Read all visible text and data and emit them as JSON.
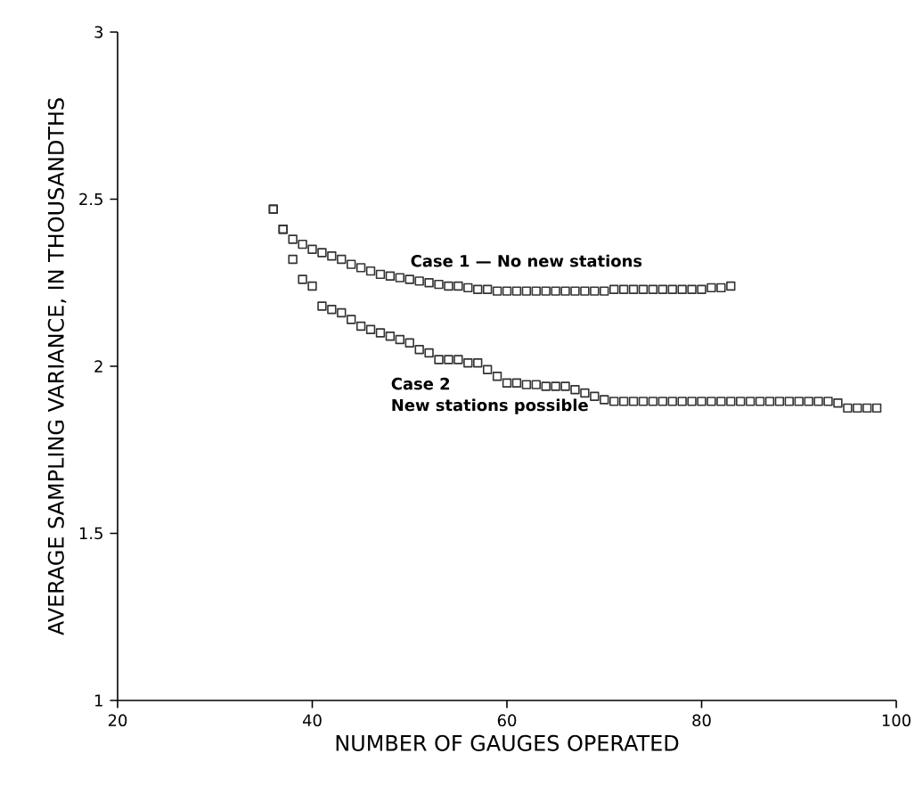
{
  "chart_data": {
    "type": "scatter",
    "xlabel": "NUMBER OF GAUGES OPERATED",
    "ylabel": "AVERAGE SAMPLING VARIANCE, IN THOUSANDTHS",
    "xlim": [
      20,
      100
    ],
    "xticks": [
      20,
      40,
      60,
      80,
      100
    ],
    "ylim": [
      1,
      3
    ],
    "yticks": [
      1,
      1.5,
      2,
      2.5,
      3
    ],
    "marker": "square",
    "grid": false,
    "legend": false,
    "series": [
      {
        "name": "Case 1 — No new stations",
        "color": "#333333",
        "x": [
          36,
          37,
          38,
          39,
          40,
          41,
          42,
          43,
          44,
          45,
          46,
          47,
          48,
          49,
          50,
          51,
          52,
          53,
          54,
          55,
          56,
          57,
          58,
          59,
          60,
          61,
          62,
          63,
          64,
          65,
          66,
          67,
          68,
          69,
          70,
          71,
          72,
          73,
          74,
          75,
          76,
          77,
          78,
          79,
          80,
          81,
          82,
          83
        ],
        "values": [
          2.47,
          2.41,
          2.38,
          2.365,
          2.35,
          2.34,
          2.33,
          2.32,
          2.305,
          2.295,
          2.285,
          2.275,
          2.27,
          2.265,
          2.26,
          2.255,
          2.25,
          2.245,
          2.24,
          2.24,
          2.235,
          2.23,
          2.23,
          2.225,
          2.225,
          2.225,
          2.225,
          2.225,
          2.225,
          2.225,
          2.225,
          2.225,
          2.225,
          2.225,
          2.225,
          2.23,
          2.23,
          2.23,
          2.23,
          2.23,
          2.23,
          2.23,
          2.23,
          2.23,
          2.23,
          2.235,
          2.235,
          2.24
        ]
      },
      {
        "name": "Case 2",
        "color": "#333333",
        "x": [
          36,
          37,
          38,
          39,
          40,
          41,
          42,
          43,
          44,
          45,
          46,
          47,
          48,
          49,
          50,
          51,
          52,
          53,
          54,
          55,
          56,
          57,
          58,
          59,
          60,
          61,
          62,
          63,
          64,
          65,
          66,
          67,
          68,
          69,
          70,
          71,
          72,
          73,
          74,
          75,
          76,
          77,
          78,
          79,
          80,
          81,
          82,
          83,
          84,
          85,
          86,
          87,
          88,
          89,
          90,
          91,
          92,
          93,
          94,
          95,
          96,
          97,
          98
        ],
        "values": [
          2.47,
          2.41,
          2.32,
          2.26,
          2.24,
          2.18,
          2.17,
          2.16,
          2.14,
          2.12,
          2.11,
          2.1,
          2.09,
          2.08,
          2.07,
          2.05,
          2.04,
          2.02,
          2.02,
          2.02,
          2.01,
          2.01,
          1.99,
          1.97,
          1.95,
          1.95,
          1.945,
          1.945,
          1.94,
          1.94,
          1.94,
          1.93,
          1.92,
          1.91,
          1.9,
          1.895,
          1.895,
          1.895,
          1.895,
          1.895,
          1.895,
          1.895,
          1.895,
          1.895,
          1.895,
          1.895,
          1.895,
          1.895,
          1.895,
          1.895,
          1.895,
          1.895,
          1.895,
          1.895,
          1.895,
          1.895,
          1.895,
          1.895,
          1.89,
          1.875,
          1.875,
          1.875,
          1.875
        ]
      }
    ],
    "annotations": [
      "New stations possible"
    ]
  }
}
